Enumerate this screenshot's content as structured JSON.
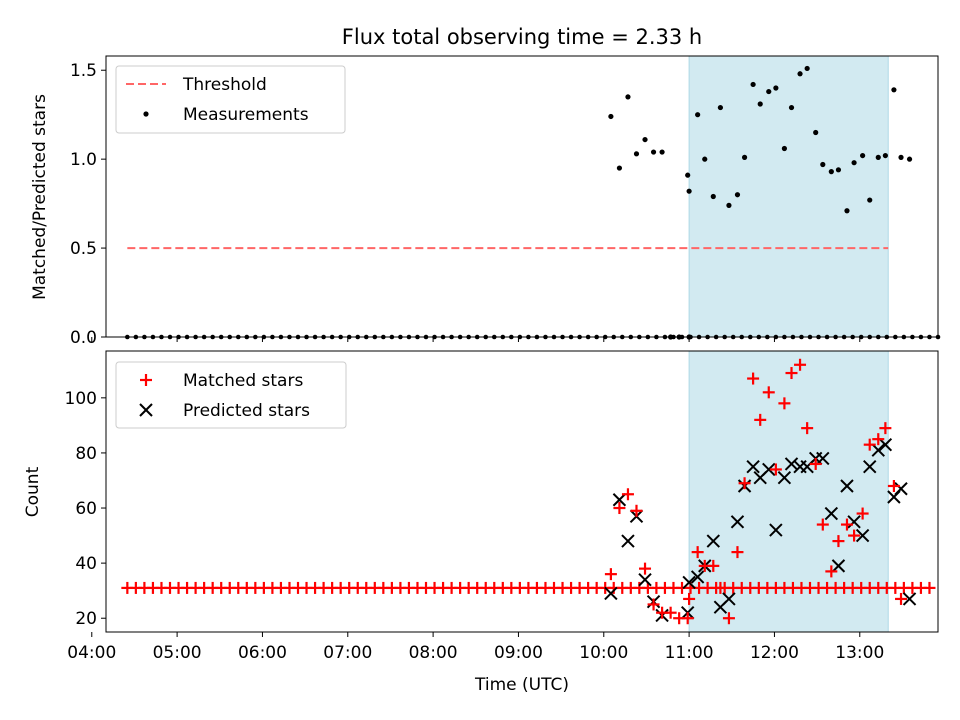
{
  "chart_data": [
    {
      "type": "scatter",
      "title": "Flux total observing time = 2.33 h",
      "ylabel": "Matched/Predicted stars",
      "xlabel": "",
      "xlim": [
        "04:10",
        "13:55"
      ],
      "ylim": [
        0,
        1.58
      ],
      "yticks": [
        "0.0",
        "0.5",
        "1.0",
        "1.5"
      ],
      "highlight_span": [
        "11:00",
        "13:20"
      ],
      "highlight_color": "#add8e6",
      "legend_position": "upper left",
      "threshold": {
        "name": "Threshold",
        "y": 0.5,
        "x_start": "04:25",
        "x_end": "13:20",
        "color": "#ff6666",
        "style": "dashed"
      },
      "measurements": {
        "name": "Measurements",
        "color": "#000000",
        "zero_points": {
          "start": "04:25",
          "step_minutes": 6,
          "count": 96
        },
        "points": [
          {
            "x": "10:05",
            "y": 1.24
          },
          {
            "x": "10:11",
            "y": 0.95
          },
          {
            "x": "10:17",
            "y": 1.35
          },
          {
            "x": "10:23",
            "y": 1.03
          },
          {
            "x": "10:29",
            "y": 1.11
          },
          {
            "x": "10:35",
            "y": 1.04
          },
          {
            "x": "10:41",
            "y": 1.04
          },
          {
            "x": "10:47",
            "y": 0.0
          },
          {
            "x": "10:53",
            "y": 0.0
          },
          {
            "x": "10:59",
            "y": 0.91
          },
          {
            "x": "11:00",
            "y": 0.0
          },
          {
            "x": "11:00",
            "y": 0.82
          },
          {
            "x": "11:06",
            "y": 1.25
          },
          {
            "x": "11:11",
            "y": 1.0
          },
          {
            "x": "11:17",
            "y": 0.79
          },
          {
            "x": "11:22",
            "y": 1.29
          },
          {
            "x": "11:28",
            "y": 0.74
          },
          {
            "x": "11:34",
            "y": 0.8
          },
          {
            "x": "11:39",
            "y": 1.01
          },
          {
            "x": "11:45",
            "y": 1.42
          },
          {
            "x": "11:50",
            "y": 1.31
          },
          {
            "x": "11:56",
            "y": 1.38
          },
          {
            "x": "12:01",
            "y": 1.4
          },
          {
            "x": "12:07",
            "y": 1.06
          },
          {
            "x": "12:12",
            "y": 1.29
          },
          {
            "x": "12:18",
            "y": 1.48
          },
          {
            "x": "12:23",
            "y": 1.51
          },
          {
            "x": "12:29",
            "y": 1.15
          },
          {
            "x": "12:34",
            "y": 0.97
          },
          {
            "x": "12:40",
            "y": 0.93
          },
          {
            "x": "12:45",
            "y": 0.94
          },
          {
            "x": "12:51",
            "y": 0.71
          },
          {
            "x": "12:56",
            "y": 0.98
          },
          {
            "x": "13:02",
            "y": 1.02
          },
          {
            "x": "13:07",
            "y": 0.77
          },
          {
            "x": "13:13",
            "y": 1.01
          },
          {
            "x": "13:18",
            "y": 1.02
          },
          {
            "x": "13:24",
            "y": 1.39
          },
          {
            "x": "13:29",
            "y": 1.01
          },
          {
            "x": "13:35",
            "y": 1.0
          }
        ]
      }
    },
    {
      "type": "scatter",
      "xlabel": "Time (UTC)",
      "ylabel": "Count",
      "xlim": [
        "04:10",
        "13:55"
      ],
      "ylim": [
        15,
        117
      ],
      "xticks": [
        "04:00",
        "05:00",
        "06:00",
        "07:00",
        "08:00",
        "09:00",
        "10:00",
        "11:00",
        "12:00",
        "13:00"
      ],
      "yticks": [
        "20",
        "40",
        "60",
        "80",
        "100"
      ],
      "highlight_span": [
        "11:00",
        "13:20"
      ],
      "highlight_color": "#add8e6",
      "legend_position": "upper left",
      "series": [
        {
          "name": "Matched stars",
          "marker": "plus",
          "color": "#ff0000",
          "constant_run": {
            "start": "04:25",
            "step_minutes": 6,
            "count": 95,
            "y": 31
          },
          "points": [
            {
              "x": "10:05",
              "y": 36
            },
            {
              "x": "10:11",
              "y": 60
            },
            {
              "x": "10:17",
              "y": 65
            },
            {
              "x": "10:23",
              "y": 59
            },
            {
              "x": "10:29",
              "y": 38
            },
            {
              "x": "10:35",
              "y": 25
            },
            {
              "x": "10:41",
              "y": 22
            },
            {
              "x": "10:47",
              "y": 22
            },
            {
              "x": "10:53",
              "y": 20
            },
            {
              "x": "10:59",
              "y": 20
            },
            {
              "x": "11:00",
              "y": 27
            },
            {
              "x": "11:06",
              "y": 44
            },
            {
              "x": "11:11",
              "y": 39
            },
            {
              "x": "11:17",
              "y": 39
            },
            {
              "x": "11:22",
              "y": 31
            },
            {
              "x": "11:28",
              "y": 20
            },
            {
              "x": "11:34",
              "y": 44
            },
            {
              "x": "11:39",
              "y": 69
            },
            {
              "x": "11:45",
              "y": 107
            },
            {
              "x": "11:50",
              "y": 92
            },
            {
              "x": "11:56",
              "y": 102
            },
            {
              "x": "12:01",
              "y": 74
            },
            {
              "x": "12:07",
              "y": 98
            },
            {
              "x": "12:12",
              "y": 109
            },
            {
              "x": "12:18",
              "y": 112
            },
            {
              "x": "12:23",
              "y": 89
            },
            {
              "x": "12:29",
              "y": 76
            },
            {
              "x": "12:34",
              "y": 54
            },
            {
              "x": "12:40",
              "y": 37
            },
            {
              "x": "12:45",
              "y": 48
            },
            {
              "x": "12:51",
              "y": 54
            },
            {
              "x": "12:56",
              "y": 50
            },
            {
              "x": "13:02",
              "y": 58
            },
            {
              "x": "13:07",
              "y": 83
            },
            {
              "x": "13:13",
              "y": 85
            },
            {
              "x": "13:18",
              "y": 89
            },
            {
              "x": "13:24",
              "y": 68
            },
            {
              "x": "13:29",
              "y": 27
            }
          ]
        },
        {
          "name": "Predicted stars",
          "marker": "x",
          "color": "#000000",
          "points": [
            {
              "x": "10:05",
              "y": 29
            },
            {
              "x": "10:11",
              "y": 63
            },
            {
              "x": "10:17",
              "y": 48
            },
            {
              "x": "10:23",
              "y": 57
            },
            {
              "x": "10:29",
              "y": 34
            },
            {
              "x": "10:35",
              "y": 26
            },
            {
              "x": "10:41",
              "y": 21
            },
            {
              "x": "10:59",
              "y": 22
            },
            {
              "x": "11:00",
              "y": 33
            },
            {
              "x": "11:06",
              "y": 35
            },
            {
              "x": "11:11",
              "y": 39
            },
            {
              "x": "11:17",
              "y": 48
            },
            {
              "x": "11:22",
              "y": 24
            },
            {
              "x": "11:28",
              "y": 27
            },
            {
              "x": "11:34",
              "y": 55
            },
            {
              "x": "11:39",
              "y": 68
            },
            {
              "x": "11:45",
              "y": 75
            },
            {
              "x": "11:50",
              "y": 71
            },
            {
              "x": "11:56",
              "y": 74
            },
            {
              "x": "12:01",
              "y": 52
            },
            {
              "x": "12:07",
              "y": 71
            },
            {
              "x": "12:12",
              "y": 76
            },
            {
              "x": "12:18",
              "y": 75
            },
            {
              "x": "12:23",
              "y": 75
            },
            {
              "x": "12:29",
              "y": 78
            },
            {
              "x": "12:34",
              "y": 78
            },
            {
              "x": "12:40",
              "y": 58
            },
            {
              "x": "12:45",
              "y": 39
            },
            {
              "x": "12:51",
              "y": 68
            },
            {
              "x": "12:56",
              "y": 55
            },
            {
              "x": "13:02",
              "y": 50
            },
            {
              "x": "13:07",
              "y": 75
            },
            {
              "x": "13:13",
              "y": 81
            },
            {
              "x": "13:18",
              "y": 83
            },
            {
              "x": "13:24",
              "y": 64
            },
            {
              "x": "13:29",
              "y": 67
            },
            {
              "x": "13:35",
              "y": 27
            }
          ]
        }
      ]
    }
  ]
}
